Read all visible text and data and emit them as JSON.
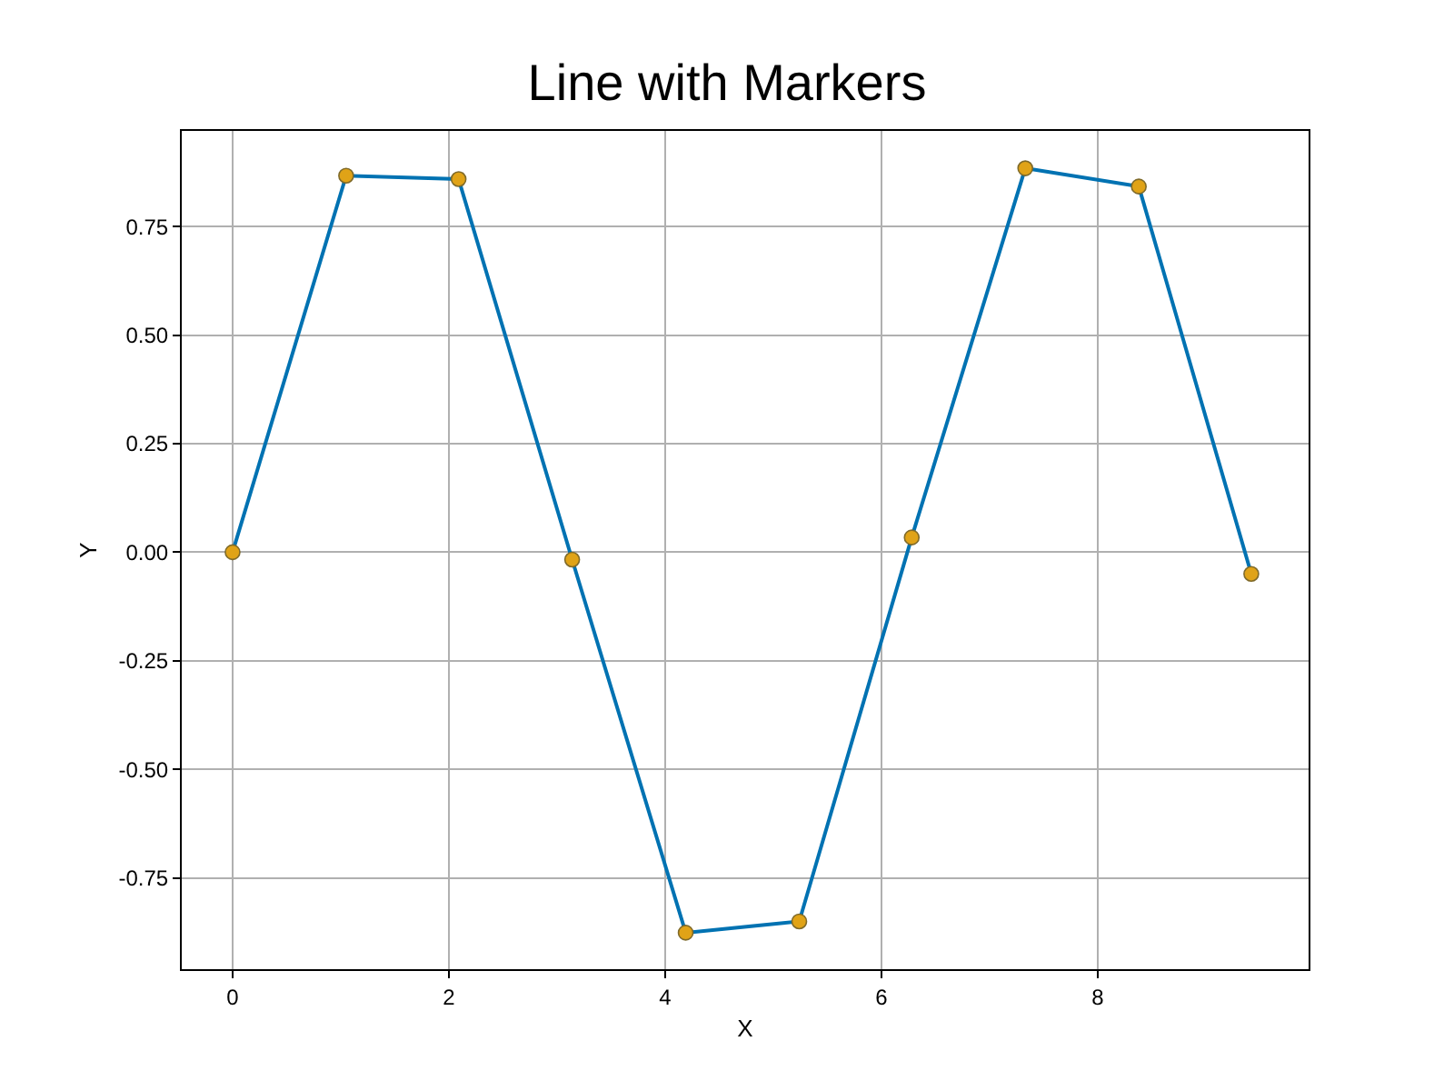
{
  "chart_data": {
    "type": "line",
    "title": "Line with Markers",
    "xlabel": "X",
    "ylabel": "Y",
    "x": [
      0,
      1.05,
      2.09,
      3.14,
      4.19,
      5.24,
      6.28,
      7.33,
      8.38,
      9.42
    ],
    "series": [
      {
        "color": "#0072b2",
        "colors": [
          "#e0a317",
          "#e0a317",
          "#e0a317",
          "#e0a317",
          "#e0a317",
          "#e0a317",
          "#e0a317",
          "#e0a317",
          "#e0a317",
          "#e0a317"
        ],
        "values": [
          0.0,
          0.867,
          0.859,
          -0.017,
          -0.876,
          -0.85,
          0.034,
          0.884,
          0.842,
          -0.05
        ]
      }
    ],
    "xlim": [
      -0.47,
      9.95
    ],
    "ylim": [
      -0.96,
      0.97
    ],
    "xticks": [
      0,
      2,
      4,
      6,
      8
    ],
    "yticks": [
      {
        "value": -0.75,
        "label": "-0.75"
      },
      {
        "value": -0.5,
        "label": "-0.50"
      },
      {
        "value": -0.25,
        "label": "-0.25"
      },
      {
        "value": 0,
        "label": "0.00"
      },
      {
        "value": 0.25,
        "label": "0.25"
      },
      {
        "value": 0.5,
        "label": "0.50"
      },
      {
        "value": 0.75,
        "label": "0.75"
      }
    ],
    "grid": true,
    "marker": "circle",
    "line_style": "solid"
  }
}
